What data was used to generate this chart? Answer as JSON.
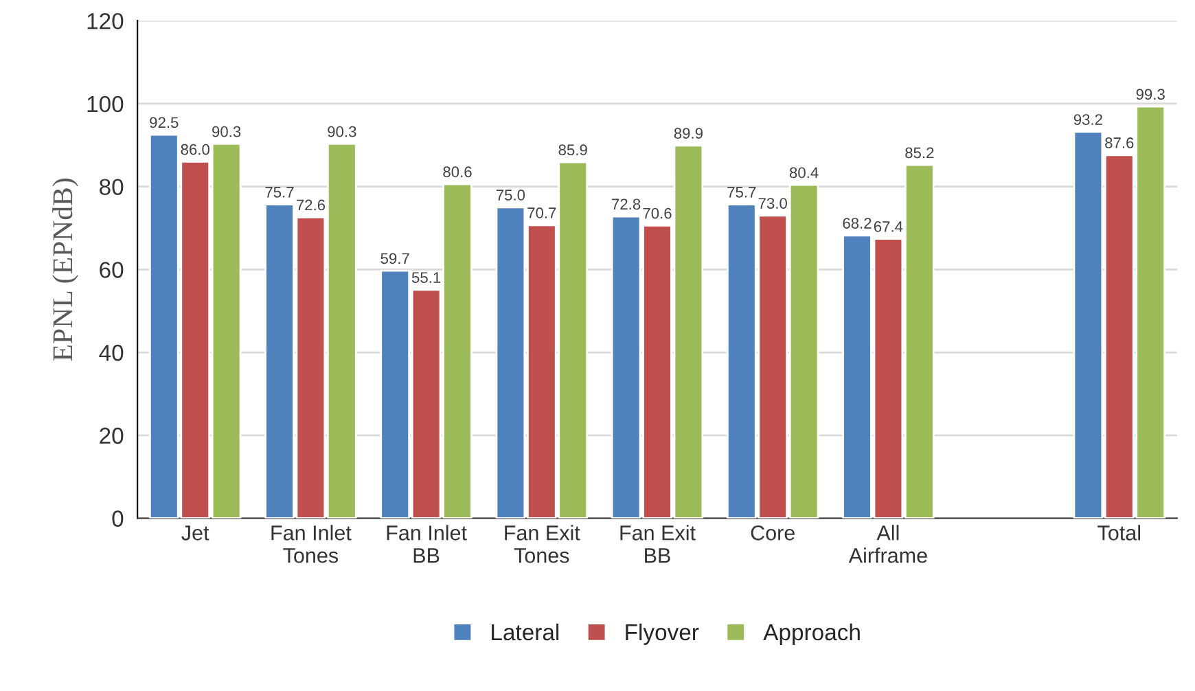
{
  "chart_data": {
    "type": "bar",
    "ylabel": "EPNL (EPNdB)",
    "categories": [
      "Jet",
      "Fan Inlet\nTones",
      "Fan Inlet\nBB",
      "Fan Exit\nTones",
      "Fan Exit\nBB",
      "Core",
      "All\nAirframe",
      null,
      "Total"
    ],
    "series": [
      {
        "name": "Lateral",
        "color": "#4f81bd",
        "values": [
          92.5,
          75.7,
          59.7,
          75.0,
          72.8,
          75.7,
          68.2,
          null,
          93.2
        ],
        "value_labels": [
          "92.5",
          "75.7",
          "59.7",
          "75.0",
          "72.8",
          "75.7",
          "68.2",
          null,
          "93.2"
        ]
      },
      {
        "name": "Flyover",
        "color": "#c0504d",
        "values": [
          86.0,
          72.6,
          55.1,
          70.7,
          70.6,
          73.0,
          67.4,
          null,
          87.6
        ],
        "value_labels": [
          "86.0",
          "72.6",
          "55.1",
          "70.7",
          "70.6",
          "73.0",
          "67.4",
          null,
          "87.6"
        ]
      },
      {
        "name": "Approach",
        "color": "#9bbb59",
        "values": [
          90.3,
          90.3,
          80.6,
          85.9,
          89.9,
          80.4,
          85.2,
          null,
          99.3
        ],
        "value_labels": [
          "90.3",
          "90.3",
          "80.6",
          "85.9",
          "89.9",
          "80.4",
          "85.2",
          null,
          "99.3"
        ]
      }
    ],
    "ylim": [
      0,
      120
    ],
    "yticks": [
      0,
      20,
      40,
      60,
      80,
      100,
      120
    ],
    "grid": "y",
    "legend": "bottom"
  }
}
